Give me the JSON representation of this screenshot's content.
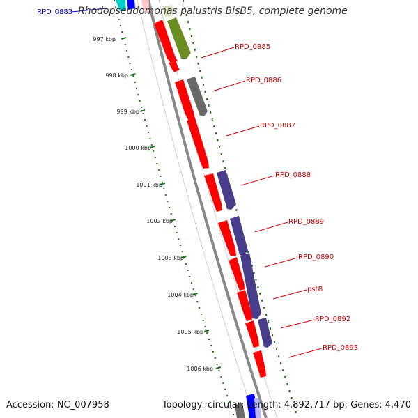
{
  "title": "Rhodopseudomonas palustris BisB5, complete genome",
  "accession": "Accession: NC_007958",
  "topology": "Topology: circular; Length: 4,892,717 bp; Genes: 4,470",
  "top_label": "RPD_0883",
  "ticks": [
    "997 kbp",
    "998 kbp",
    "999 kbp",
    "1000 kbp",
    "1001 kbp",
    "1002 kbp",
    "1003 kbp",
    "1004 kbp",
    "1005 kbp",
    "1006 kbp"
  ],
  "gene_labels": [
    "RPD_0885",
    "RPD_0886",
    "RPD_0887",
    "RPD_0888",
    "RPD_0889",
    "RPD_0890",
    "pstB",
    "RPD_0892",
    "RPD_0893"
  ],
  "colors": {
    "gene_red": "#ff0000",
    "olive": "#6b8e23",
    "gray": "#696969",
    "purple": "#483d8b",
    "label_red": "#cc0000",
    "tick_green": "#1a7a1a",
    "backbone": "#888888",
    "top_label_blue": "#0000cc",
    "cyan": "#00cccc",
    "blue": "#0000ff"
  }
}
